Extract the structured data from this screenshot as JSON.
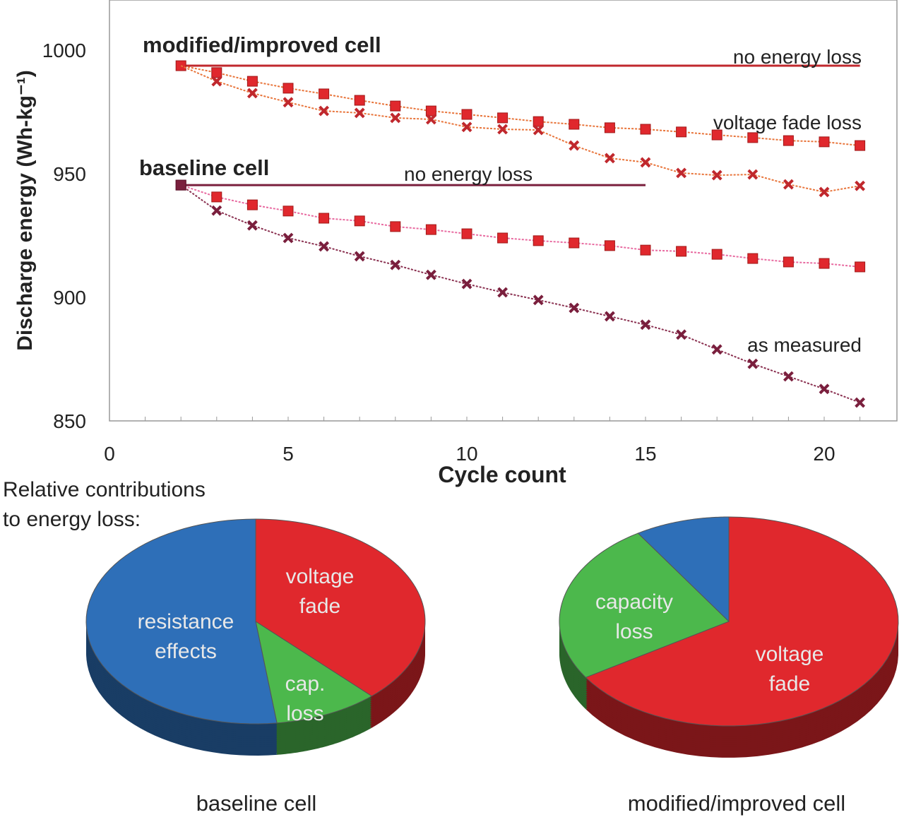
{
  "chart_data": [
    {
      "type": "line",
      "xlabel": "Cycle count",
      "ylabel": "Discharge energy (Wh-kg⁻¹)",
      "xlim": [
        0,
        21.5
      ],
      "ylim": [
        850,
        1020
      ],
      "xticks": [
        0,
        5,
        10,
        15,
        20
      ],
      "yticks": [
        850,
        900,
        950,
        1000
      ],
      "grid": false,
      "group_labels": {
        "modified": "modified/improved cell",
        "baseline": "baseline cell"
      },
      "annotations": {
        "modified_no_loss": "no energy loss",
        "voltage_fade": "voltage fade loss",
        "baseline_no_loss": "no energy loss",
        "as_measured": "as measured"
      },
      "x": [
        2,
        3,
        4,
        5,
        6,
        7,
        8,
        9,
        10,
        11,
        12,
        13,
        14,
        15,
        16,
        17,
        18,
        19,
        20,
        21
      ],
      "reference_lines": [
        {
          "cell": "modified",
          "y": 993.7,
          "x_range": [
            2,
            21
          ],
          "color": "#c0282d"
        },
        {
          "cell": "baseline",
          "y": 945.4,
          "x_range": [
            2,
            15
          ],
          "color": "#7a1f3d"
        }
      ],
      "series": [
        {
          "cell": "modified",
          "marker": "square",
          "color": "#e0282d",
          "line_color": "#e8743a",
          "values": [
            993.7,
            990.9,
            987.4,
            984.6,
            982.3,
            979.7,
            977.4,
            975.4,
            974.0,
            972.6,
            971.1,
            970.0,
            968.6,
            968.0,
            966.9,
            965.7,
            964.6,
            963.4,
            962.9,
            961.4
          ]
        },
        {
          "cell": "modified",
          "marker": "x",
          "color": "#c0282d",
          "line_color": "#e8743a",
          "values": [
            993.7,
            987.4,
            982.6,
            978.9,
            975.4,
            974.6,
            972.6,
            972.0,
            968.9,
            968.0,
            967.7,
            961.4,
            956.3,
            954.6,
            950.3,
            949.4,
            949.7,
            945.7,
            942.6,
            945.1
          ]
        },
        {
          "cell": "baseline",
          "marker": "square",
          "color": "#e0282d",
          "line_color": "#e86aa0",
          "values": [
            945.4,
            940.6,
            937.4,
            934.9,
            932.0,
            930.9,
            928.6,
            927.4,
            925.7,
            924.0,
            922.9,
            922.0,
            920.9,
            919.1,
            918.6,
            917.4,
            915.7,
            914.3,
            913.7,
            912.3
          ]
        },
        {
          "cell": "baseline",
          "marker": "x",
          "color": "#7a1f3d",
          "line_color": "#8a3050",
          "values": [
            945.4,
            935.1,
            929.1,
            924.0,
            920.6,
            916.6,
            913.1,
            909.1,
            905.4,
            902.0,
            898.9,
            895.7,
            892.3,
            888.9,
            884.9,
            878.9,
            873.1,
            868.0,
            862.9,
            857.4
          ]
        }
      ]
    },
    {
      "type": "pie",
      "title": "baseline cell",
      "heading": "Relative contributions to energy loss:",
      "slices": [
        {
          "label": "voltage fade",
          "value": 38,
          "color": "#e0282d"
        },
        {
          "label": "cap. loss",
          "value": 10,
          "color": "#4cb84c"
        },
        {
          "label": "resistance effects",
          "value": 52,
          "color": "#2e6fb8"
        }
      ]
    },
    {
      "type": "pie",
      "title": "modified/improved cell",
      "slices": [
        {
          "label": "voltage fade",
          "value": 66,
          "color": "#e0282d"
        },
        {
          "label": "capacity loss",
          "value": 25,
          "color": "#4cb84c"
        },
        {
          "label": "",
          "value": 9,
          "color": "#2e6fb8"
        }
      ]
    }
  ]
}
